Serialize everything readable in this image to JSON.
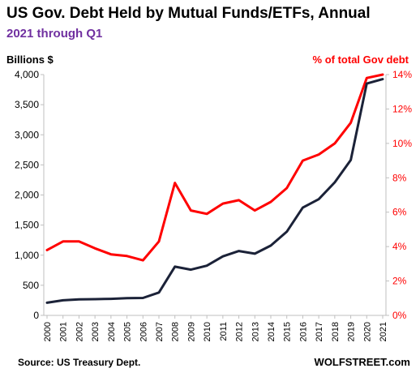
{
  "chart_data": {
    "type": "line",
    "title": "US Gov. Debt Held by Mutual Funds/ETFs, Annual",
    "subtitle": "2021 through Q1",
    "ylabel_left": "Billions  $",
    "ylabel_right": "% of total Gov debt",
    "source": "Source: US Treasury Dept.",
    "brand": "WOLFSTREET.com",
    "x": [
      "2000",
      "2001",
      "2002",
      "2003",
      "2004",
      "2005",
      "2006",
      "2007",
      "2008",
      "2009",
      "2010",
      "2011",
      "2012",
      "2013",
      "2014",
      "2015",
      "2016",
      "2017",
      "2018",
      "2019",
      "2020",
      "2021"
    ],
    "y_left_ticks": [
      "0",
      "500",
      "1,000",
      "1,500",
      "2,000",
      "2,500",
      "3,000",
      "3,500",
      "4,000"
    ],
    "y_right_ticks": [
      "0%",
      "2%",
      "4%",
      "6%",
      "8%",
      "10%",
      "12%",
      "14%"
    ],
    "ylim_left": [
      0,
      4000
    ],
    "ylim_right": [
      0,
      14
    ],
    "grid": false,
    "colors": {
      "subtitle": "#7030a0",
      "right_axis": "#ff0000",
      "amount_line": "#1b2238",
      "percent_line": "#ff0000",
      "axis": "#bfbfbf"
    },
    "series": [
      {
        "axis": "left",
        "values": [
          210,
          250,
          265,
          270,
          275,
          285,
          290,
          380,
          810,
          760,
          825,
          980,
          1070,
          1025,
          1160,
          1390,
          1790,
          1930,
          2210,
          2580,
          3850,
          3925
        ]
      },
      {
        "axis": "right",
        "values": [
          3.8,
          4.3,
          4.3,
          3.9,
          3.55,
          3.45,
          3.2,
          4.3,
          7.7,
          6.1,
          5.9,
          6.5,
          6.7,
          6.1,
          6.6,
          7.4,
          9.0,
          9.35,
          10.0,
          11.2,
          13.8,
          14.0
        ]
      }
    ]
  }
}
